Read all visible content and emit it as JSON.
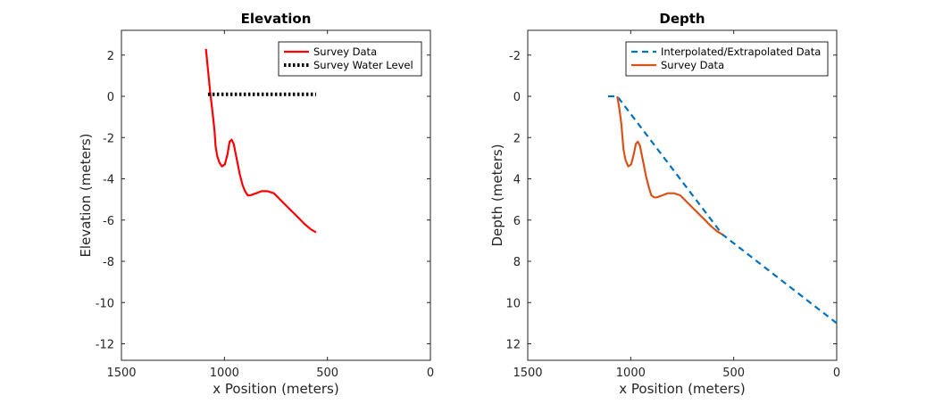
{
  "chart_data": [
    {
      "type": "line",
      "title": "Elevation",
      "xlabel": "x Position (meters)",
      "ylabel": "Elevation (meters)",
      "xlim": [
        0,
        1500
      ],
      "x_reversed": true,
      "ylim": [
        -12.8,
        3.2
      ],
      "y_reversed": false,
      "xticks": [
        1500,
        1000,
        500,
        0
      ],
      "xtick_labels": [
        "1500",
        "1000",
        "500",
        "0"
      ],
      "yticks": [
        2,
        0,
        -2,
        -4,
        -6,
        -8,
        -10,
        -12
      ],
      "ytick_labels": [
        "2",
        "0",
        "-2",
        "-4",
        "-6",
        "-8",
        "-10",
        "-12"
      ],
      "legend_position": "top-right",
      "series": [
        {
          "name": "Survey Data",
          "color": "#ff0000",
          "style": "solid",
          "x": [
            1090,
            1083,
            1076,
            1069,
            1062,
            1055,
            1048,
            1043,
            1040,
            1035,
            1025,
            1012,
            998,
            985,
            975,
            965,
            955,
            945,
            935,
            925,
            912,
            900,
            887,
            873,
            860,
            846,
            820,
            790,
            760,
            730,
            700,
            670,
            640,
            610,
            580,
            555
          ],
          "y": [
            2.3,
            1.6,
            0.9,
            0.2,
            -0.4,
            -1.0,
            -1.7,
            -2.4,
            -2.6,
            -2.9,
            -3.2,
            -3.4,
            -3.3,
            -2.8,
            -2.2,
            -2.1,
            -2.3,
            -2.8,
            -3.3,
            -3.8,
            -4.3,
            -4.6,
            -4.8,
            -4.8,
            -4.75,
            -4.7,
            -4.6,
            -4.6,
            -4.7,
            -5.0,
            -5.3,
            -5.6,
            -5.9,
            -6.2,
            -6.45,
            -6.6
          ]
        },
        {
          "name": "Survey Water Level",
          "color": "#000000",
          "style": "dotted",
          "x": [
            1080,
            555
          ],
          "y": [
            0.1,
            0.1
          ]
        }
      ]
    },
    {
      "type": "line",
      "title": "Depth",
      "xlabel": "x Position (meters)",
      "ylabel": "Depth (meters)",
      "xlim": [
        0,
        1500
      ],
      "x_reversed": true,
      "ylim": [
        -3.2,
        12.8
      ],
      "y_reversed": true,
      "xticks": [
        1500,
        1000,
        500,
        0
      ],
      "xtick_labels": [
        "1500",
        "1000",
        "500",
        "0"
      ],
      "yticks": [
        -2,
        0,
        2,
        4,
        6,
        8,
        10,
        12
      ],
      "ytick_labels": [
        "-2",
        "0",
        "2",
        "4",
        "6",
        "8",
        "10",
        "12"
      ],
      "legend_position": "top-right",
      "series": [
        {
          "name": "Interpolated/Extrapolated Data",
          "color": "#0072bd",
          "style": "dashed",
          "x": [
            1110,
            1065,
            555,
            0
          ],
          "y": [
            0.0,
            0.0,
            6.7,
            11.0
          ]
        },
        {
          "name": "Survey Data",
          "color": "#d95319",
          "style": "solid",
          "x": [
            1065,
            1055,
            1045,
            1040,
            1035,
            1025,
            1012,
            998,
            985,
            975,
            965,
            955,
            945,
            935,
            925,
            912,
            900,
            887,
            873,
            860,
            846,
            820,
            790,
            760,
            730,
            700,
            670,
            640,
            610,
            580,
            555
          ],
          "y": [
            0.0,
            0.6,
            1.4,
            2.0,
            2.6,
            3.1,
            3.4,
            3.3,
            2.8,
            2.3,
            2.2,
            2.4,
            2.9,
            3.4,
            3.9,
            4.4,
            4.8,
            4.9,
            4.9,
            4.85,
            4.8,
            4.7,
            4.7,
            4.8,
            5.1,
            5.4,
            5.7,
            6.0,
            6.3,
            6.55,
            6.7
          ]
        }
      ]
    }
  ]
}
